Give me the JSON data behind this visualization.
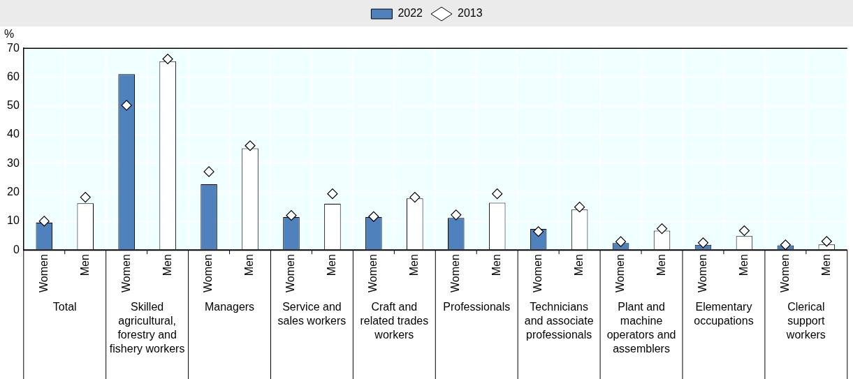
{
  "chart_data": {
    "type": "bar",
    "ylabel": "%",
    "categories": [
      "Women",
      "Men",
      "Women",
      "Men",
      "Women",
      "Men",
      "Women",
      "Men",
      "Women",
      "Men",
      "Women",
      "Men",
      "Women",
      "Men",
      "Women",
      "Men",
      "Women",
      "Men",
      "Women",
      "Men"
    ],
    "annotations": [
      "Total",
      "Skilled agricultural, forestry and fishery workers",
      "Managers",
      "Service and sales workers",
      "Craft and related trades workers",
      "Professionals",
      "Technicians and associate professionals",
      "Plant and machine operators and assemblers",
      "Elementary occupations",
      "Clerical support workers"
    ],
    "series": [
      {
        "name": "2022",
        "color": "#4f81bd",
        "colors": [
          "#4f81bd",
          "#ffffff",
          "#4f81bd",
          "#ffffff",
          "#4f81bd",
          "#ffffff",
          "#4f81bd",
          "#ffffff",
          "#4f81bd",
          "#ffffff",
          "#4f81bd",
          "#ffffff",
          "#4f81bd",
          "#ffffff",
          "#4f81bd",
          "#ffffff",
          "#4f81bd",
          "#ffffff",
          "#4f81bd",
          "#ffffff"
        ],
        "values": [
          9.5,
          16.2,
          61,
          65.5,
          22.8,
          35.3,
          11.4,
          16,
          11.4,
          17.9,
          11.1,
          16.4,
          7.3,
          14,
          2.4,
          6.7,
          1.8,
          4.8,
          1.6,
          1.9
        ]
      },
      {
        "name": "2013",
        "type": "scatter",
        "color": "#ffffff",
        "marker": "diamond",
        "values": [
          10,
          18.3,
          50.2,
          66.3,
          27.2,
          36.2,
          12,
          19.5,
          11.6,
          18.3,
          12.2,
          19.5,
          6.4,
          14.9,
          2.9,
          7.4,
          2.5,
          6.7,
          1.8,
          3.0
        ]
      }
    ],
    "ylim": [
      0,
      70
    ],
    "yticks": [
      0,
      10,
      20,
      30,
      40,
      50,
      60,
      70
    ],
    "grid": true,
    "legend": "top"
  }
}
